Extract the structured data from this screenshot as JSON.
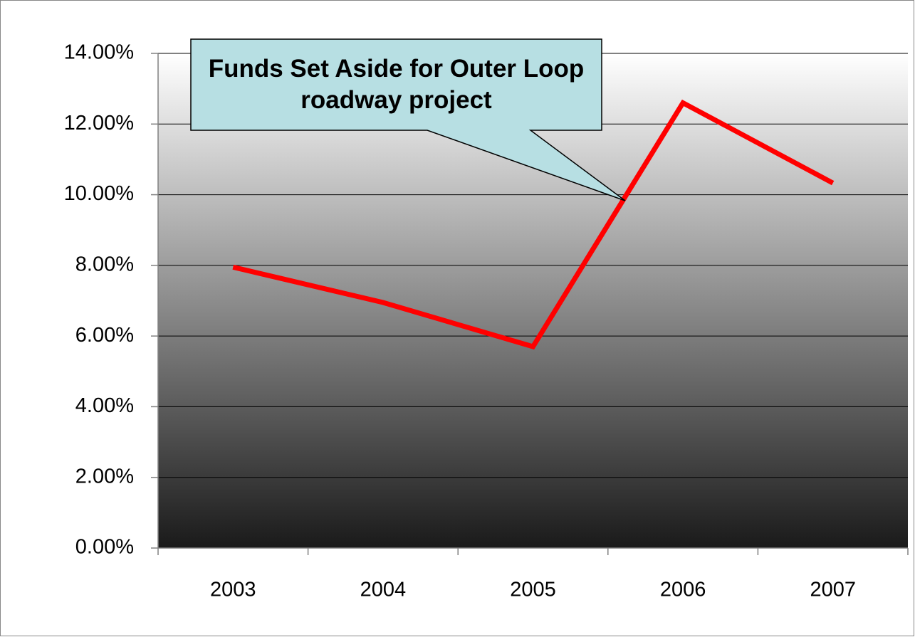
{
  "chart_data": {
    "type": "line",
    "categories": [
      "2003",
      "2004",
      "2005",
      "2006",
      "2007"
    ],
    "values": [
      7.95,
      6.95,
      5.7,
      12.6,
      10.33
    ],
    "color": "#ff0000",
    "ylim": [
      0,
      14
    ],
    "yticks": [
      {
        "value": 0,
        "label": "0.00%"
      },
      {
        "value": 2,
        "label": "2.00%"
      },
      {
        "value": 4,
        "label": "4.00%"
      },
      {
        "value": 6,
        "label": "6.00%"
      },
      {
        "value": 8,
        "label": "8.00%"
      },
      {
        "value": 10,
        "label": "10.00%"
      },
      {
        "value": 12,
        "label": "12.00%"
      },
      {
        "value": 14,
        "label": "14.00%"
      }
    ],
    "grid": true,
    "annotation": "Funds Set Aside for Outer Loop roadway project"
  }
}
